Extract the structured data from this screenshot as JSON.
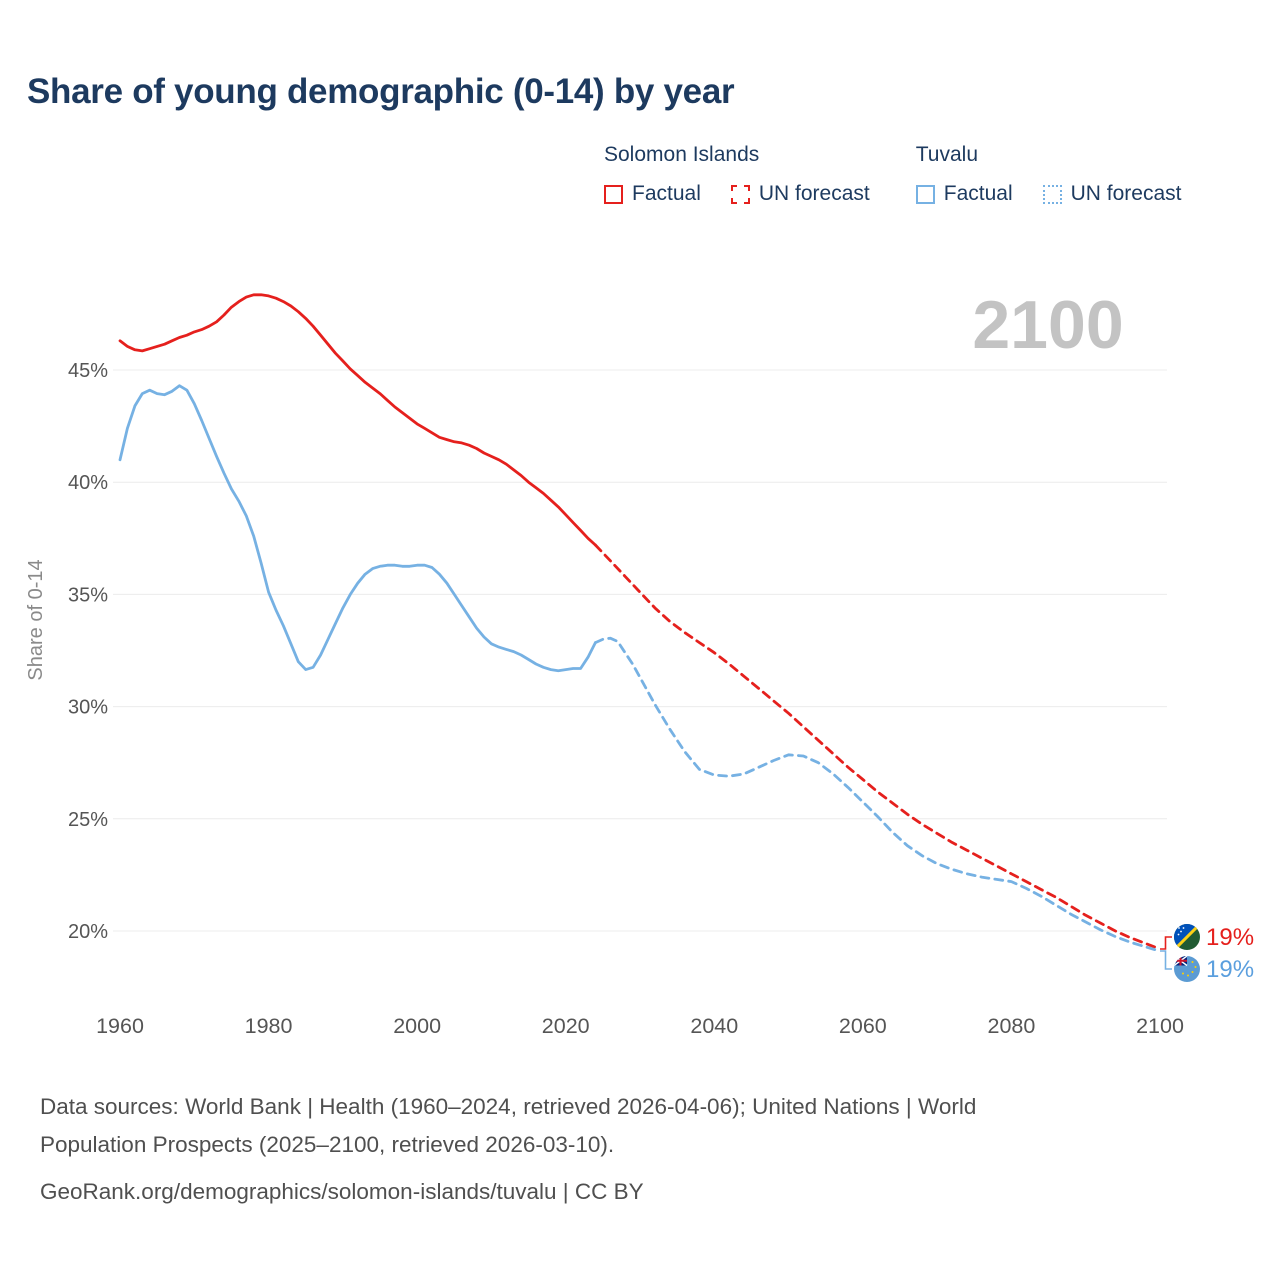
{
  "title": "Share of young demographic (0-14) by year",
  "watermark": "2100",
  "colors": {
    "solomon_islands": "#e5201d",
    "tuvalu": "#76b1e3",
    "title_text": "#1d3a5f",
    "axis_text": "#555555",
    "watermark_gray": "#c3c3c3",
    "gridline": "#ececec"
  },
  "legend": {
    "groups": [
      {
        "name": "Solomon Islands",
        "color": "#e5201d",
        "items": [
          {
            "label": "Factual",
            "style": "solid"
          },
          {
            "label": "UN forecast",
            "style": "dashed"
          }
        ]
      },
      {
        "name": "Tuvalu",
        "color": "#76b1e3",
        "items": [
          {
            "label": "Factual",
            "style": "solid"
          },
          {
            "label": "UN forecast",
            "style": "dotted"
          }
        ]
      }
    ]
  },
  "chart_data": {
    "type": "line",
    "title": "Share of young demographic (0-14) by year",
    "xlabel": "",
    "ylabel": "Share of 0-14",
    "ylim": [
      18.5,
      49
    ],
    "xlim": [
      1958,
      2112
    ],
    "grid": "horizontal",
    "legend_position": "top-right",
    "yticks": [
      20,
      25,
      30,
      35,
      40,
      45
    ],
    "ytick_labels": [
      "20%",
      "25%",
      "30%",
      "35%",
      "40%",
      "45%"
    ],
    "xticks": [
      1960,
      1980,
      2000,
      2020,
      2040,
      2060,
      2080,
      2100
    ],
    "series": [
      {
        "name": "Solomon Islands Factual",
        "color": "#e5201d",
        "dashed": false,
        "points": [
          [
            1960,
            46.3
          ],
          [
            1961,
            46.05
          ],
          [
            1962,
            45.9
          ],
          [
            1963,
            45.85
          ],
          [
            1964,
            45.95
          ],
          [
            1965,
            46.05
          ],
          [
            1966,
            46.15
          ],
          [
            1967,
            46.3
          ],
          [
            1968,
            46.45
          ],
          [
            1969,
            46.55
          ],
          [
            1970,
            46.7
          ],
          [
            1971,
            46.8
          ],
          [
            1972,
            46.95
          ],
          [
            1973,
            47.15
          ],
          [
            1974,
            47.45
          ],
          [
            1975,
            47.8
          ],
          [
            1976,
            48.05
          ],
          [
            1977,
            48.25
          ],
          [
            1978,
            48.35
          ],
          [
            1979,
            48.35
          ],
          [
            1980,
            48.3
          ],
          [
            1981,
            48.2
          ],
          [
            1982,
            48.05
          ],
          [
            1983,
            47.85
          ],
          [
            1984,
            47.6
          ],
          [
            1985,
            47.3
          ],
          [
            1986,
            46.95
          ],
          [
            1987,
            46.55
          ],
          [
            1988,
            46.15
          ],
          [
            1989,
            45.75
          ],
          [
            1990,
            45.4
          ],
          [
            1991,
            45.05
          ],
          [
            1992,
            44.75
          ],
          [
            1993,
            44.45
          ],
          [
            1994,
            44.2
          ],
          [
            1995,
            43.95
          ],
          [
            1996,
            43.65
          ],
          [
            1997,
            43.35
          ],
          [
            1998,
            43.1
          ],
          [
            1999,
            42.85
          ],
          [
            2000,
            42.6
          ],
          [
            2001,
            42.4
          ],
          [
            2002,
            42.2
          ],
          [
            2003,
            42.0
          ],
          [
            2004,
            41.9
          ],
          [
            2005,
            41.8
          ],
          [
            2006,
            41.75
          ],
          [
            2007,
            41.65
          ],
          [
            2008,
            41.5
          ],
          [
            2009,
            41.3
          ],
          [
            2010,
            41.15
          ],
          [
            2011,
            41.0
          ],
          [
            2012,
            40.8
          ],
          [
            2013,
            40.55
          ],
          [
            2014,
            40.3
          ],
          [
            2015,
            40.0
          ],
          [
            2016,
            39.75
          ],
          [
            2017,
            39.5
          ],
          [
            2018,
            39.2
          ],
          [
            2019,
            38.9
          ],
          [
            2020,
            38.55
          ],
          [
            2021,
            38.2
          ],
          [
            2022,
            37.85
          ],
          [
            2023,
            37.5
          ],
          [
            2024,
            37.2
          ]
        ]
      },
      {
        "name": "Solomon Islands UN forecast",
        "color": "#e5201d",
        "dashed": true,
        "points": [
          [
            2024,
            37.2
          ],
          [
            2026,
            36.5
          ],
          [
            2028,
            35.8
          ],
          [
            2030,
            35.1
          ],
          [
            2032,
            34.4
          ],
          [
            2034,
            33.8
          ],
          [
            2036,
            33.3
          ],
          [
            2038,
            32.85
          ],
          [
            2040,
            32.4
          ],
          [
            2042,
            31.9
          ],
          [
            2044,
            31.35
          ],
          [
            2046,
            30.8
          ],
          [
            2048,
            30.25
          ],
          [
            2050,
            29.7
          ],
          [
            2052,
            29.1
          ],
          [
            2054,
            28.5
          ],
          [
            2056,
            27.9
          ],
          [
            2058,
            27.3
          ],
          [
            2060,
            26.75
          ],
          [
            2062,
            26.2
          ],
          [
            2064,
            25.7
          ],
          [
            2066,
            25.2
          ],
          [
            2068,
            24.75
          ],
          [
            2070,
            24.35
          ],
          [
            2072,
            23.95
          ],
          [
            2074,
            23.6
          ],
          [
            2076,
            23.25
          ],
          [
            2078,
            22.9
          ],
          [
            2080,
            22.55
          ],
          [
            2082,
            22.2
          ],
          [
            2084,
            21.85
          ],
          [
            2086,
            21.5
          ],
          [
            2088,
            21.1
          ],
          [
            2090,
            20.7
          ],
          [
            2092,
            20.35
          ],
          [
            2094,
            20.0
          ],
          [
            2096,
            19.7
          ],
          [
            2098,
            19.45
          ],
          [
            2100,
            19.2
          ]
        ]
      },
      {
        "name": "Tuvalu Factual",
        "color": "#76b1e3",
        "dashed": false,
        "points": [
          [
            1960,
            41.0
          ],
          [
            1961,
            42.4
          ],
          [
            1962,
            43.4
          ],
          [
            1963,
            43.95
          ],
          [
            1964,
            44.1
          ],
          [
            1965,
            43.95
          ],
          [
            1966,
            43.9
          ],
          [
            1967,
            44.05
          ],
          [
            1968,
            44.3
          ],
          [
            1969,
            44.1
          ],
          [
            1970,
            43.5
          ],
          [
            1971,
            42.75
          ],
          [
            1972,
            41.95
          ],
          [
            1973,
            41.15
          ],
          [
            1974,
            40.4
          ],
          [
            1975,
            39.7
          ],
          [
            1976,
            39.15
          ],
          [
            1977,
            38.5
          ],
          [
            1978,
            37.6
          ],
          [
            1979,
            36.4
          ],
          [
            1980,
            35.1
          ],
          [
            1981,
            34.3
          ],
          [
            1982,
            33.6
          ],
          [
            1983,
            32.8
          ],
          [
            1984,
            32.0
          ],
          [
            1985,
            31.65
          ],
          [
            1986,
            31.75
          ],
          [
            1987,
            32.3
          ],
          [
            1988,
            33.0
          ],
          [
            1989,
            33.7
          ],
          [
            1990,
            34.4
          ],
          [
            1991,
            35.0
          ],
          [
            1992,
            35.5
          ],
          [
            1993,
            35.9
          ],
          [
            1994,
            36.15
          ],
          [
            1995,
            36.25
          ],
          [
            1996,
            36.3
          ],
          [
            1997,
            36.3
          ],
          [
            1998,
            36.25
          ],
          [
            1999,
            36.25
          ],
          [
            2000,
            36.3
          ],
          [
            2001,
            36.3
          ],
          [
            2002,
            36.2
          ],
          [
            2003,
            35.9
          ],
          [
            2004,
            35.5
          ],
          [
            2005,
            35.0
          ],
          [
            2006,
            34.5
          ],
          [
            2007,
            34.0
          ],
          [
            2008,
            33.5
          ],
          [
            2009,
            33.1
          ],
          [
            2010,
            32.8
          ],
          [
            2011,
            32.65
          ],
          [
            2012,
            32.55
          ],
          [
            2013,
            32.45
          ],
          [
            2014,
            32.3
          ],
          [
            2015,
            32.1
          ],
          [
            2016,
            31.9
          ],
          [
            2017,
            31.75
          ],
          [
            2018,
            31.65
          ],
          [
            2019,
            31.6
          ],
          [
            2020,
            31.65
          ],
          [
            2021,
            31.7
          ],
          [
            2022,
            31.7
          ],
          [
            2023,
            32.2
          ],
          [
            2024,
            32.85
          ]
        ]
      },
      {
        "name": "Tuvalu UN forecast",
        "color": "#76b1e3",
        "dashed": true,
        "points": [
          [
            2024,
            32.85
          ],
          [
            2025,
            33.0
          ],
          [
            2026,
            33.05
          ],
          [
            2027,
            32.9
          ],
          [
            2028,
            32.4
          ],
          [
            2029,
            31.9
          ],
          [
            2030,
            31.3
          ],
          [
            2032,
            30.1
          ],
          [
            2034,
            29.0
          ],
          [
            2036,
            28.0
          ],
          [
            2038,
            27.2
          ],
          [
            2040,
            26.95
          ],
          [
            2042,
            26.9
          ],
          [
            2044,
            27.0
          ],
          [
            2046,
            27.3
          ],
          [
            2048,
            27.6
          ],
          [
            2050,
            27.85
          ],
          [
            2052,
            27.8
          ],
          [
            2054,
            27.5
          ],
          [
            2056,
            27.0
          ],
          [
            2058,
            26.4
          ],
          [
            2060,
            25.75
          ],
          [
            2062,
            25.1
          ],
          [
            2064,
            24.4
          ],
          [
            2066,
            23.8
          ],
          [
            2068,
            23.35
          ],
          [
            2070,
            23.0
          ],
          [
            2072,
            22.75
          ],
          [
            2074,
            22.55
          ],
          [
            2076,
            22.4
          ],
          [
            2078,
            22.3
          ],
          [
            2080,
            22.2
          ],
          [
            2082,
            21.9
          ],
          [
            2084,
            21.55
          ],
          [
            2086,
            21.15
          ],
          [
            2088,
            20.75
          ],
          [
            2090,
            20.4
          ],
          [
            2092,
            20.05
          ],
          [
            2094,
            19.75
          ],
          [
            2096,
            19.5
          ],
          [
            2098,
            19.3
          ],
          [
            2100,
            19.1
          ]
        ]
      }
    ]
  },
  "end_labels": [
    {
      "country": "Solomon Islands",
      "value": "19%",
      "color": "#e5201d"
    },
    {
      "country": "Tuvalu",
      "value": "19%",
      "color": "#5b9fde"
    }
  ],
  "footer": {
    "lines": [
      "Data sources: World Bank | Health (1960–2024, retrieved 2026-04-06); United Nations | World",
      "Population Prospects (2025–2100, retrieved 2026-03-10).",
      "GeoRank.org/demographics/solomon-islands/tuvalu | CC BY"
    ]
  }
}
